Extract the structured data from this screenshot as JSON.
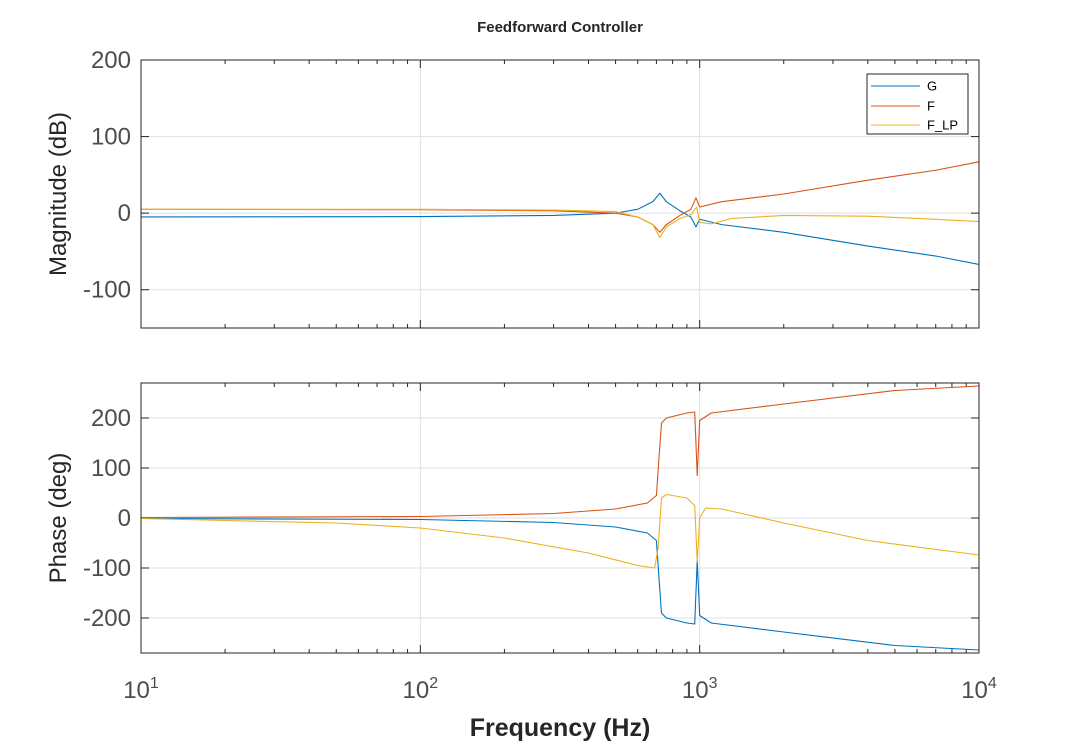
{
  "chart_data": {
    "type": "line",
    "title": "Feedforward Controller",
    "xlabel": "Frequency (Hz)",
    "xscale": "log",
    "xlim": [
      10,
      10000
    ],
    "x_ticks": [
      10,
      100,
      1000,
      10000
    ],
    "x_tick_labels": [
      {
        "base": "10",
        "exp": "1"
      },
      {
        "base": "10",
        "exp": "2"
      },
      {
        "base": "10",
        "exp": "3"
      },
      {
        "base": "10",
        "exp": "4"
      }
    ],
    "grid": true,
    "colors": {
      "G": "#0072bd",
      "F": "#d95319",
      "F_LP": "#edb120"
    },
    "legend": {
      "placement": "top-right",
      "entries": [
        "G",
        "F",
        "F_LP"
      ]
    },
    "panels": [
      {
        "name": "magnitude",
        "ylabel": "Magnitude (dB)",
        "ylim": [
          -150,
          200
        ],
        "yticks": [
          200,
          100,
          0,
          -100
        ],
        "ytick_labels": [
          "200",
          "100",
          "0",
          "-100"
        ],
        "series": [
          {
            "name": "G",
            "points": [
              [
                10,
                -5
              ],
              [
                100,
                -4.5
              ],
              [
                300,
                -3
              ],
              [
                500,
                0
              ],
              [
                600,
                5
              ],
              [
                680,
                15
              ],
              [
                720,
                26
              ],
              [
                760,
                15
              ],
              [
                850,
                3
              ],
              [
                930,
                -5
              ],
              [
                970,
                -18
              ],
              [
                1000,
                -8
              ],
              [
                1200,
                -15
              ],
              [
                2000,
                -25
              ],
              [
                4000,
                -43
              ],
              [
                7000,
                -56
              ],
              [
                10000,
                -67
              ]
            ]
          },
          {
            "name": "F",
            "points": [
              [
                10,
                5
              ],
              [
                100,
                4.5
              ],
              [
                300,
                3
              ],
              [
                500,
                0
              ],
              [
                600,
                -5
              ],
              [
                680,
                -15
              ],
              [
                720,
                -25
              ],
              [
                760,
                -15
              ],
              [
                850,
                -3
              ],
              [
                930,
                5
              ],
              [
                970,
                20
              ],
              [
                1000,
                8
              ],
              [
                1200,
                15
              ],
              [
                2000,
                25
              ],
              [
                4000,
                43
              ],
              [
                7000,
                56
              ],
              [
                10000,
                67
              ]
            ]
          },
          {
            "name": "F_LP",
            "points": [
              [
                10,
                5
              ],
              [
                100,
                5
              ],
              [
                300,
                4
              ],
              [
                500,
                2
              ],
              [
                600,
                -5
              ],
              [
                680,
                -15
              ],
              [
                720,
                -32
              ],
              [
                760,
                -18
              ],
              [
                850,
                -7
              ],
              [
                930,
                -2
              ],
              [
                975,
                8
              ],
              [
                1000,
                -12
              ],
              [
                1100,
                -14
              ],
              [
                1300,
                -7
              ],
              [
                2000,
                -3
              ],
              [
                4000,
                -4
              ],
              [
                7000,
                -8
              ],
              [
                10000,
                -11
              ]
            ]
          }
        ]
      },
      {
        "name": "phase",
        "ylabel": "Phase (deg)",
        "ylim": [
          -270,
          270
        ],
        "yticks": [
          200,
          100,
          0,
          -100,
          -200
        ],
        "ytick_labels": [
          "200",
          "100",
          "0",
          "-100",
          "-200"
        ],
        "series": [
          {
            "name": "G",
            "points": [
              [
                10,
                -1
              ],
              [
                100,
                -3
              ],
              [
                300,
                -9
              ],
              [
                500,
                -18
              ],
              [
                650,
                -30
              ],
              [
                700,
                -45
              ],
              [
                715,
                -120
              ],
              [
                730,
                -190
              ],
              [
                760,
                -200
              ],
              [
                900,
                -210
              ],
              [
                960,
                -212
              ],
              [
                980,
                -85
              ],
              [
                1000,
                -195
              ],
              [
                1100,
                -210
              ],
              [
                2000,
                -228
              ],
              [
                5000,
                -255
              ],
              [
                10000,
                -264
              ]
            ]
          },
          {
            "name": "F",
            "points": [
              [
                10,
                1
              ],
              [
                100,
                3
              ],
              [
                300,
                9
              ],
              [
                500,
                18
              ],
              [
                650,
                30
              ],
              [
                700,
                45
              ],
              [
                715,
                120
              ],
              [
                730,
                190
              ],
              [
                760,
                200
              ],
              [
                900,
                210
              ],
              [
                960,
                212
              ],
              [
                980,
                85
              ],
              [
                1000,
                195
              ],
              [
                1100,
                210
              ],
              [
                2000,
                228
              ],
              [
                5000,
                255
              ],
              [
                10000,
                264
              ]
            ]
          },
          {
            "name": "F_LP",
            "points": [
              [
                10,
                -1
              ],
              [
                20,
                -5
              ],
              [
                50,
                -10
              ],
              [
                100,
                -20
              ],
              [
                200,
                -40
              ],
              [
                400,
                -70
              ],
              [
                600,
                -95
              ],
              [
                690,
                -100
              ],
              [
                710,
                -60
              ],
              [
                730,
                40
              ],
              [
                760,
                47
              ],
              [
                900,
                40
              ],
              [
                960,
                25
              ],
              [
                980,
                -88
              ],
              [
                1000,
                0
              ],
              [
                1050,
                20
              ],
              [
                1200,
                18
              ],
              [
                2000,
                -10
              ],
              [
                4000,
                -45
              ],
              [
                10000,
                -74
              ]
            ]
          }
        ]
      }
    ]
  }
}
